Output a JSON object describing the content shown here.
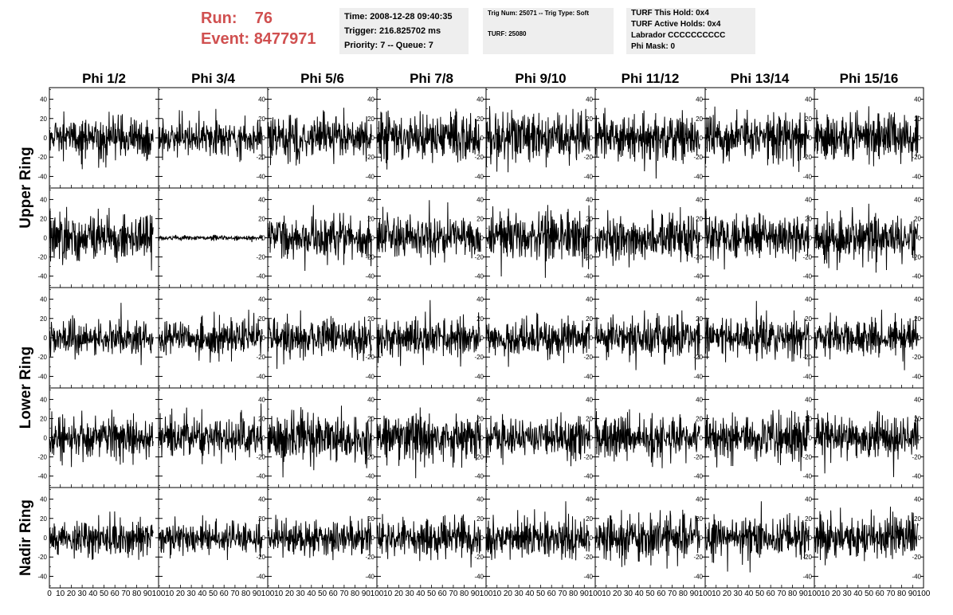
{
  "header": {
    "run_label": "Run:",
    "run_value": "76",
    "event_label": "Event:",
    "event_value": "8477971",
    "colors": {
      "run_text": "#d05050",
      "box_bg": "#eeeeee"
    }
  },
  "info_boxes": {
    "time": "Time: 2008-12-28 09:40:35",
    "trigger": "Trigger: 216.825702 ms",
    "priority": "Priority: 7 -- Queue: 7",
    "trig_num": "Trig Num: 25071 -- Trig Type: Soft",
    "turf": "TURF: 25080",
    "turf_this_hold": "TURF This Hold: 0x4",
    "turf_active_holds": "TURF Active Holds: 0x4",
    "labrador": "Labrador CCCCCCCCCC",
    "phi_mask": "Phi Mask: 0"
  },
  "chart_data": {
    "type": "line",
    "layout": "grid",
    "columns": [
      "Phi 1/2",
      "Phi 3/4",
      "Phi 5/6",
      "Phi 7/8",
      "Phi 9/10",
      "Phi 11/12",
      "Phi 13/14",
      "Phi 15/16"
    ],
    "rows": [
      "Upper Ring",
      "Upper Ring",
      "Lower Ring",
      "Lower Ring",
      "Nadir Ring"
    ],
    "row_titles": [
      "Upper Ring",
      "Lower Ring",
      "Nadir Ring"
    ],
    "xlim": [
      0,
      100
    ],
    "ylim": [
      -52,
      52
    ],
    "y_ticks": [
      40,
      20,
      0,
      -20,
      -40
    ],
    "x_ticks": [
      0,
      10,
      20,
      30,
      40,
      50,
      60,
      70,
      80,
      90,
      100
    ],
    "samples_per_trace": 260,
    "x_range_trace": [
      0,
      95
    ],
    "trace_color": "#000000",
    "amplitude_rms": [
      [
        13,
        10,
        14,
        14,
        16,
        13,
        14,
        14
      ],
      [
        14,
        1.5,
        14,
        14,
        15,
        14,
        13,
        15
      ],
      [
        12,
        11,
        13,
        12,
        12,
        13,
        13,
        11
      ],
      [
        13,
        13,
        14,
        14,
        13,
        13,
        13,
        14
      ],
      [
        11,
        10,
        11,
        12,
        12,
        14,
        12,
        13
      ]
    ],
    "noise_seed": 8477971
  }
}
